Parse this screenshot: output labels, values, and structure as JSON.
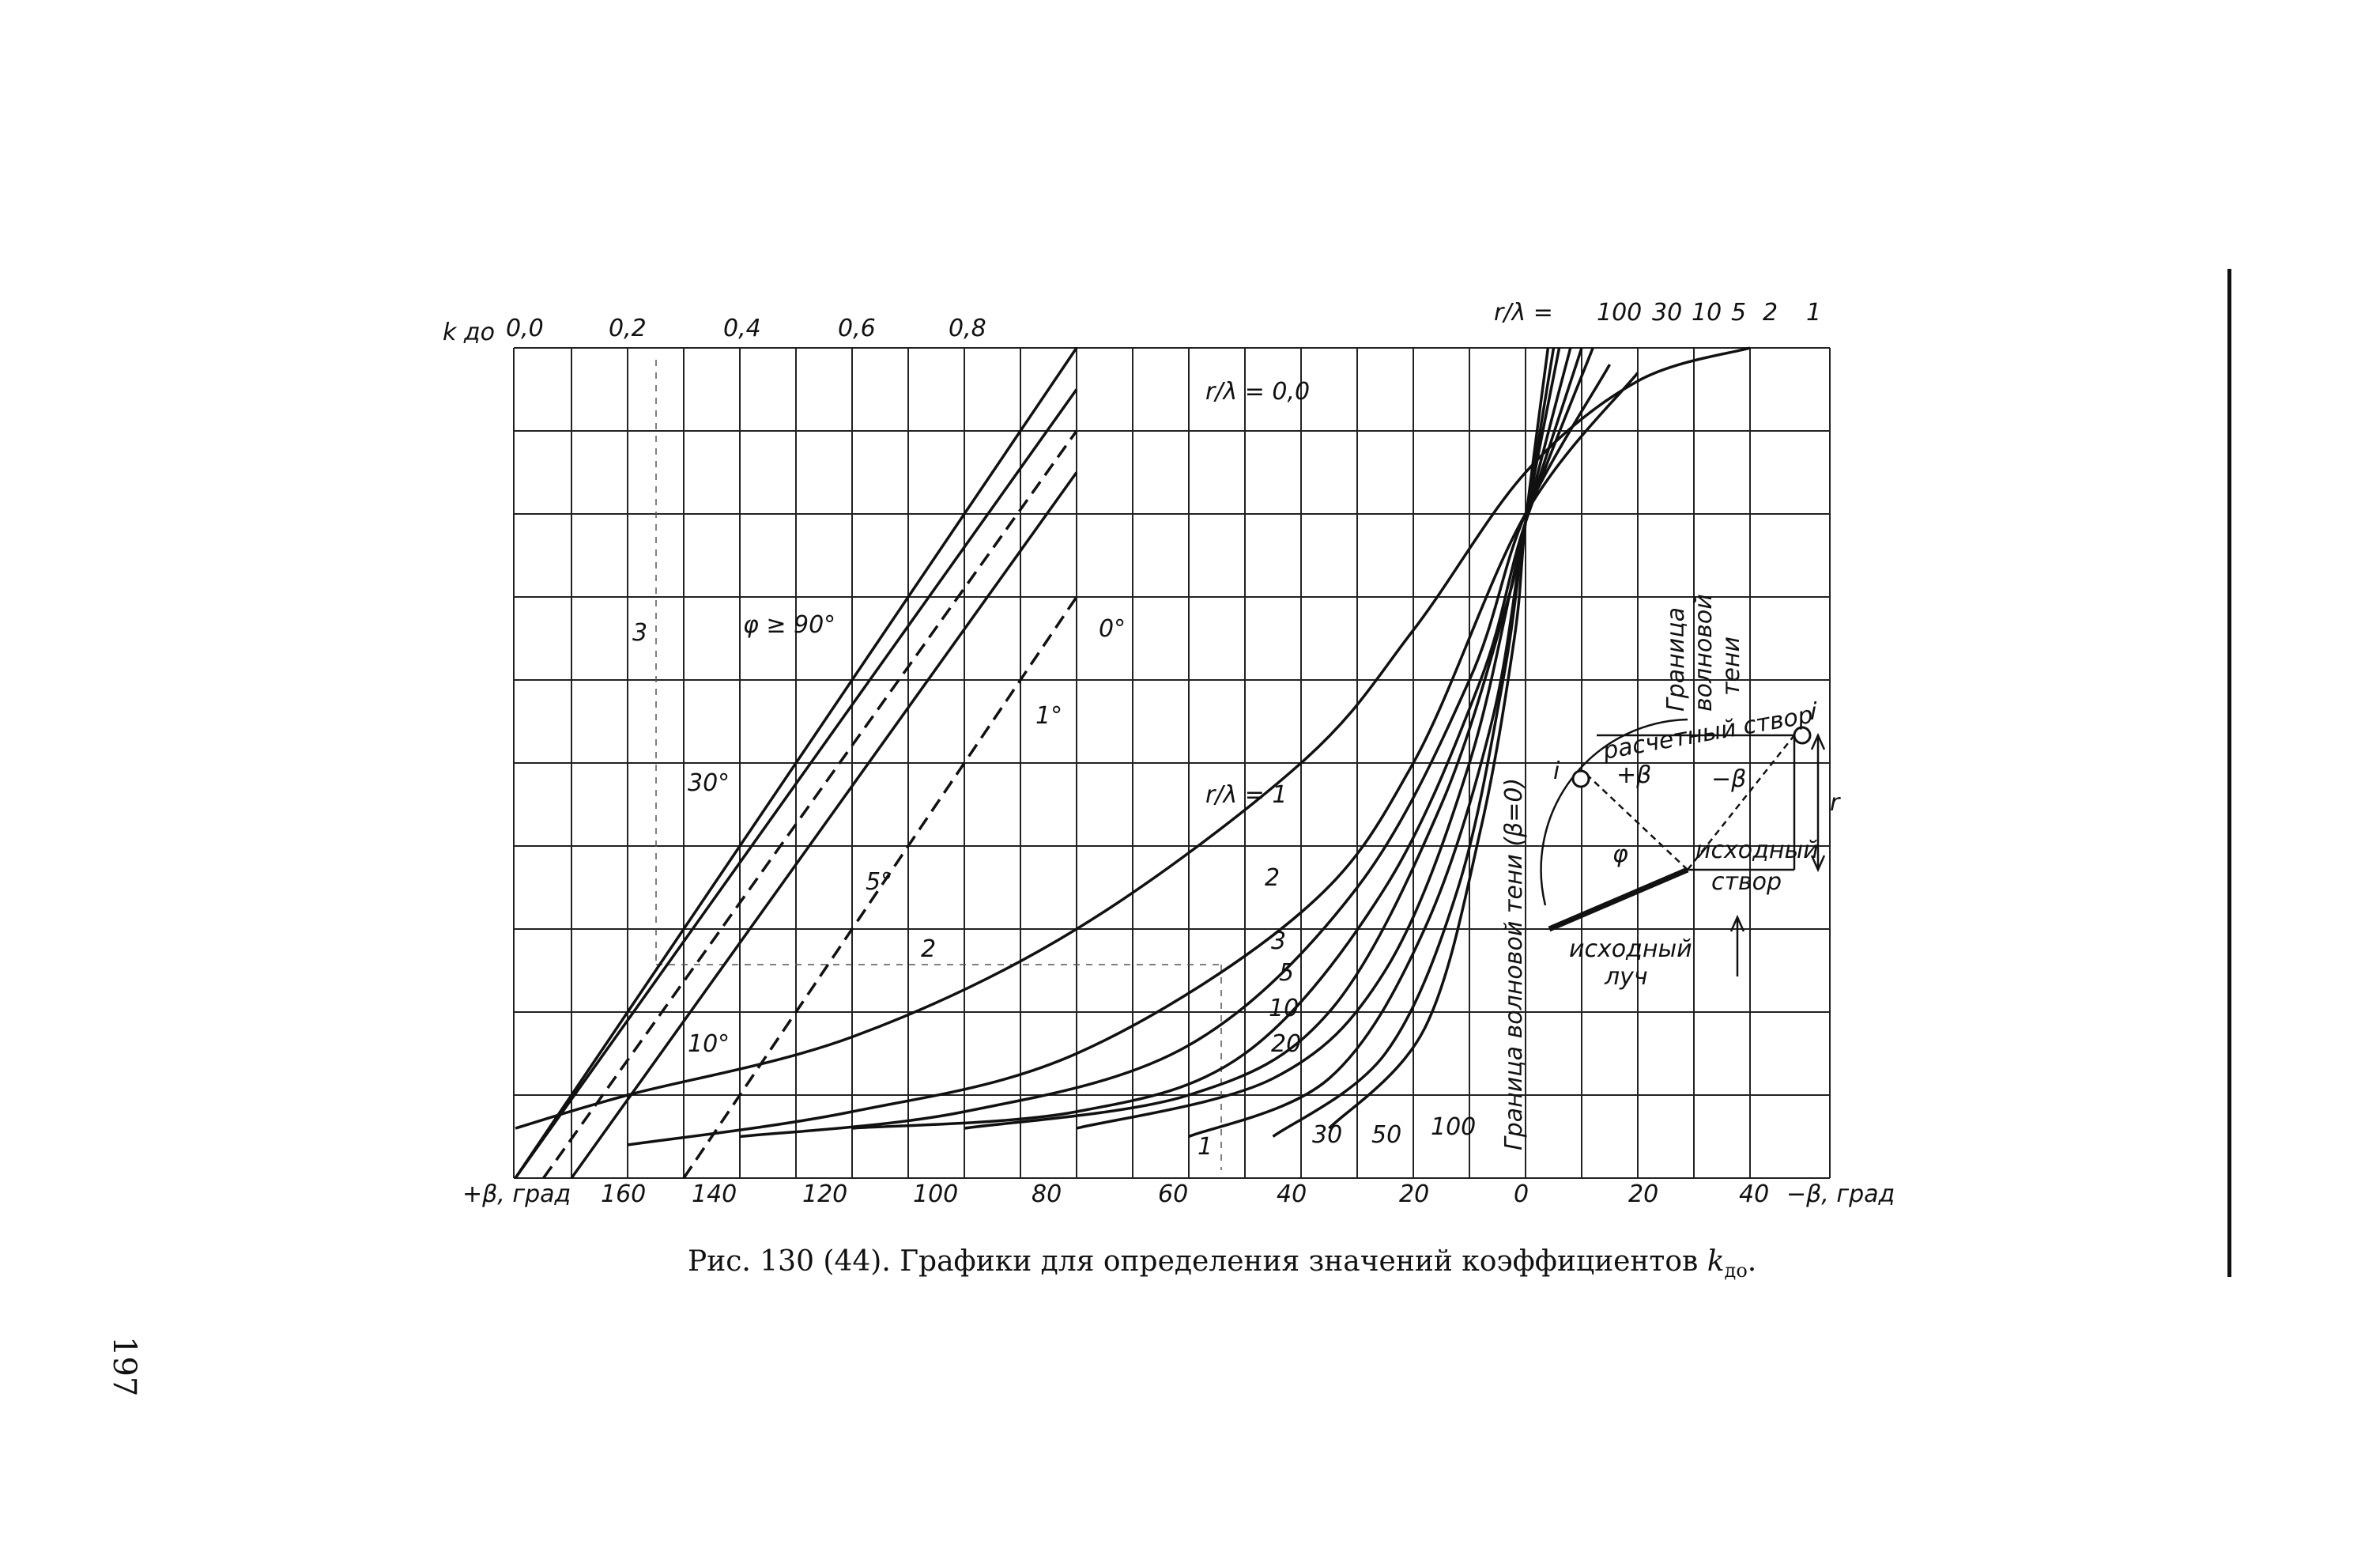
{
  "caption": {
    "text": "Рис. 130 (44). Графики для определения значений коэффициентов ",
    "sym": "k",
    "sub": "до",
    "tail": "."
  },
  "page_number": "197",
  "chart_data": {
    "type": "line",
    "title": "",
    "y_axis_label": "k до",
    "y_ticks": [
      "0,0",
      "0,2",
      "0,4",
      "0,6",
      "0,8"
    ],
    "x_label_left": "+β, град",
    "x_label_right": "−β, град",
    "x_ticks_left": [
      "160",
      "140",
      "120",
      "100",
      "80",
      "60",
      "40",
      "20",
      "0"
    ],
    "x_ticks_right": [
      "20",
      "40"
    ],
    "r_lambda_top_prefix": "r/λ = ",
    "r_lambda_top": [
      "100",
      "30",
      "10",
      "5",
      "2",
      "1"
    ],
    "r_lambda_zero": "r/λ = 0,0",
    "r_lambda_one": "r/λ = 1",
    "phi_labels": [
      "φ ≥ 90°",
      "30°",
      "10°",
      "5°",
      "1°",
      "0°"
    ],
    "curve_labels": [
      "2",
      "3",
      "5",
      "10",
      "20",
      "30",
      "50",
      "100"
    ],
    "shadow_label": "Граница волновой тени (β=0)",
    "shadow_label_small_1": "Граница",
    "shadow_label_small_2": "волновой",
    "shadow_label_small_3": "тени",
    "example_labels": [
      "1",
      "2",
      "3"
    ],
    "inset": {
      "calc_line": "расчетный створ",
      "point_left": "i",
      "point_right": "i",
      "plus_beta": "+β",
      "minus_beta": "−β",
      "r": "r",
      "phi": "φ",
      "initial_line_1": "исходный",
      "initial_line_2": "створ",
      "initial_ray_1": "исходный",
      "initial_ray_2": "луч"
    },
    "series_far_field": [
      {
        "name": "φ ≥ 90°",
        "points": [
          [
            180,
            0.0
          ],
          [
            80,
            1.0
          ]
        ]
      },
      {
        "name": "30°",
        "points": [
          [
            180,
            0.0
          ],
          [
            80,
            0.95
          ]
        ]
      },
      {
        "name": "10°",
        "points": [
          [
            175,
            0.0
          ],
          [
            80,
            0.9
          ]
        ]
      },
      {
        "name": "5°",
        "points": [
          [
            170,
            0.0
          ],
          [
            80,
            0.85
          ]
        ]
      },
      {
        "name": "1°",
        "points": [
          [
            150,
            0.0
          ],
          [
            80,
            0.7
          ]
        ]
      }
    ],
    "series_r_lambda": [
      {
        "name": "1",
        "points": [
          [
            180,
            0.06
          ],
          [
            160,
            0.1
          ],
          [
            120,
            0.17
          ],
          [
            80,
            0.3
          ],
          [
            40,
            0.5
          ],
          [
            20,
            0.66
          ],
          [
            0,
            0.85
          ],
          [
            -20,
            0.96
          ],
          [
            -40,
            1.0
          ]
        ]
      },
      {
        "name": "2",
        "points": [
          [
            160,
            0.04
          ],
          [
            120,
            0.08
          ],
          [
            80,
            0.15
          ],
          [
            40,
            0.32
          ],
          [
            20,
            0.5
          ],
          [
            0,
            0.8
          ],
          [
            -20,
            0.97
          ]
        ]
      },
      {
        "name": "3",
        "points": [
          [
            140,
            0.05
          ],
          [
            100,
            0.08
          ],
          [
            60,
            0.16
          ],
          [
            30,
            0.35
          ],
          [
            10,
            0.6
          ],
          [
            0,
            0.8
          ],
          [
            -15,
            0.98
          ]
        ]
      },
      {
        "name": "5",
        "points": [
          [
            120,
            0.06
          ],
          [
            80,
            0.08
          ],
          [
            50,
            0.15
          ],
          [
            25,
            0.35
          ],
          [
            8,
            0.6
          ],
          [
            0,
            0.79
          ],
          [
            -12,
            1.0
          ]
        ]
      },
      {
        "name": "10",
        "points": [
          [
            100,
            0.06
          ],
          [
            60,
            0.1
          ],
          [
            35,
            0.2
          ],
          [
            15,
            0.45
          ],
          [
            3,
            0.7
          ],
          [
            0,
            0.79
          ],
          [
            -10,
            1.0
          ]
        ]
      },
      {
        "name": "20",
        "points": [
          [
            80,
            0.06
          ],
          [
            45,
            0.12
          ],
          [
            25,
            0.25
          ],
          [
            10,
            0.5
          ],
          [
            0,
            0.79
          ],
          [
            -8,
            1.0
          ]
        ]
      },
      {
        "name": "30",
        "points": [
          [
            60,
            0.05
          ],
          [
            35,
            0.12
          ],
          [
            18,
            0.3
          ],
          [
            6,
            0.55
          ],
          [
            0,
            0.79
          ],
          [
            -6,
            1.0
          ]
        ]
      },
      {
        "name": "50",
        "points": [
          [
            45,
            0.05
          ],
          [
            25,
            0.15
          ],
          [
            12,
            0.35
          ],
          [
            4,
            0.6
          ],
          [
            0,
            0.79
          ],
          [
            -5,
            1.0
          ]
        ]
      },
      {
        "name": "100",
        "points": [
          [
            35,
            0.06
          ],
          [
            18,
            0.18
          ],
          [
            8,
            0.42
          ],
          [
            2,
            0.65
          ],
          [
            0,
            0.79
          ],
          [
            -4,
            1.0
          ]
        ]
      }
    ]
  }
}
